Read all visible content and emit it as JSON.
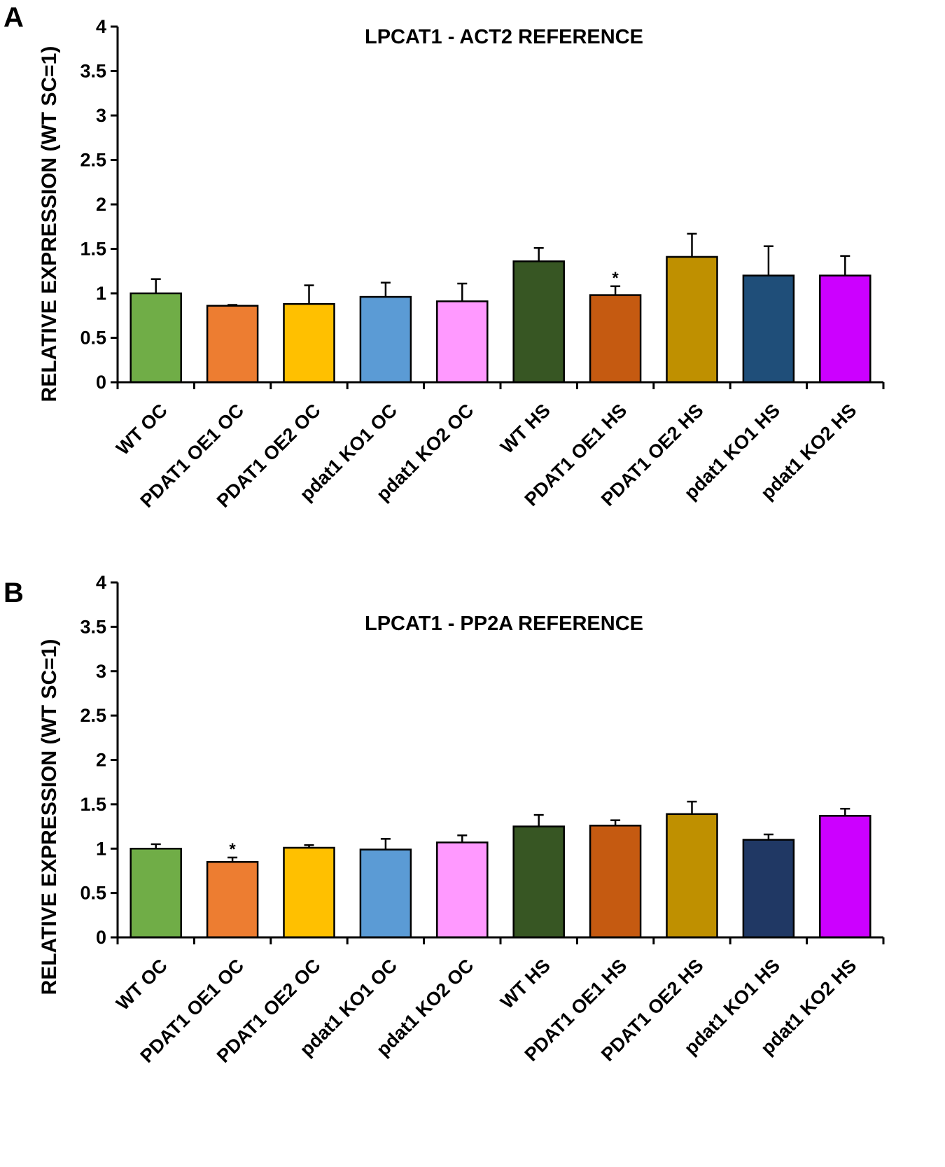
{
  "chart_data": [
    {
      "type": "bar",
      "panel": "A",
      "title": "LPCAT1 - ACT2 REFERENCE",
      "xlabel": "",
      "ylabel": "RELATIVE EXPRESSION (WT SC=1)",
      "ylim": [
        0,
        4
      ],
      "yticks": [
        "0",
        "0.5",
        "1",
        "1.5",
        "2",
        "2.5",
        "3",
        "3.5",
        "4"
      ],
      "categories": [
        "WT OC",
        "PDAT1 OE1 OC",
        "PDAT1 OE2 OC",
        "pdat1 KO1 OC",
        "pdat1 KO2 OC",
        "WT HS",
        "PDAT1 OE1 HS",
        "PDAT1 OE2 HS",
        "pdat1 KO1 HS",
        "pdat1 KO2 HS"
      ],
      "values": [
        1.0,
        0.86,
        0.88,
        0.96,
        0.91,
        1.36,
        0.98,
        1.41,
        1.2,
        1.2
      ],
      "errors": [
        0.16,
        0.01,
        0.21,
        0.16,
        0.2,
        0.15,
        0.1,
        0.26,
        0.33,
        0.22
      ],
      "significance": [
        "",
        "",
        "",
        "",
        "",
        "",
        "*",
        "",
        "",
        ""
      ],
      "colors": [
        "#70ad47",
        "#ed7d31",
        "#ffc000",
        "#5b9bd5",
        "#ff99ff",
        "#375623",
        "#c55a11",
        "#bf9000",
        "#1f4e79",
        "#cc00ff"
      ]
    },
    {
      "type": "bar",
      "panel": "B",
      "title": "LPCAT1 - PP2A REFERENCE",
      "xlabel": "",
      "ylabel": "RELATIVE EXPRESSION (WT SC=1)",
      "ylim": [
        0,
        4
      ],
      "yticks": [
        "0",
        "0.5",
        "1",
        "1.5",
        "2",
        "2.5",
        "3",
        "3.5",
        "4"
      ],
      "categories": [
        "WT OC",
        "PDAT1 OE1 OC",
        "PDAT1 OE2 OC",
        "pdat1 KO1 OC",
        "pdat1 KO2 OC",
        "WT HS",
        "PDAT1 OE1 HS",
        "PDAT1 OE2 HS",
        "pdat1 KO1 HS",
        "pdat1 KO2 HS"
      ],
      "values": [
        1.0,
        0.85,
        1.01,
        0.99,
        1.07,
        1.25,
        1.26,
        1.39,
        1.1,
        1.37
      ],
      "errors": [
        0.05,
        0.05,
        0.03,
        0.12,
        0.08,
        0.13,
        0.06,
        0.14,
        0.06,
        0.08
      ],
      "significance": [
        "",
        "*",
        "",
        "",
        "",
        "",
        "",
        "",
        "",
        ""
      ],
      "colors": [
        "#70ad47",
        "#ed7d31",
        "#ffc000",
        "#5b9bd5",
        "#ff99ff",
        "#375623",
        "#c55a11",
        "#bf9000",
        "#203864",
        "#cc00ff"
      ]
    }
  ]
}
